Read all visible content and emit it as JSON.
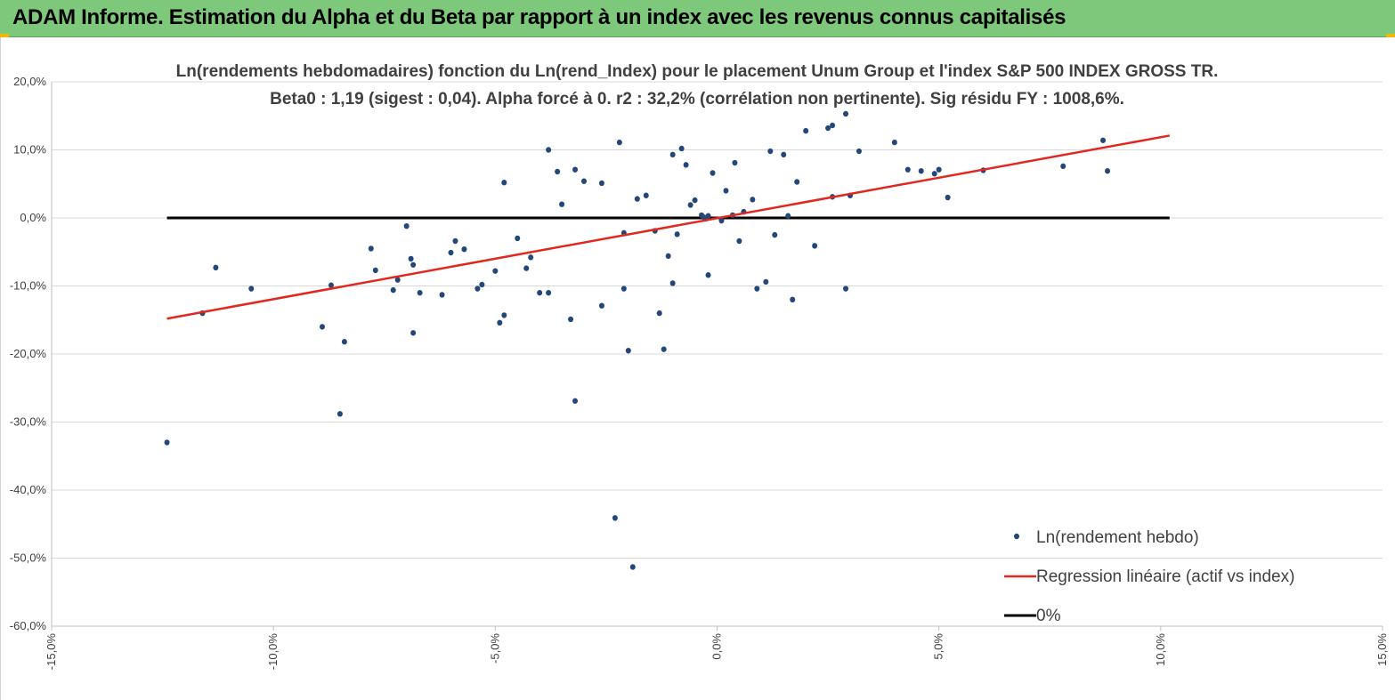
{
  "header": {
    "title": "ADAM Informe. Estimation du Alpha et du Beta par rapport à un index avec les revenus connus capitalisés",
    "color": "#7dc87a"
  },
  "chart_data": {
    "type": "scatter",
    "title": "Ln(rendements hebdomadaires) fonction du Ln(rend_Index) pour le placement Unum Group et l'index S&P 500 INDEX GROSS TR.",
    "subtitle": "Beta0 : 1,19 (sigest : 0,04). Alpha forcé à 0. r2 : 32,2% (corrélation non pertinente). Sig résidu FY : 1008,6%.",
    "xlabel": "",
    "ylabel": "",
    "xlim": [
      -15,
      15
    ],
    "ylim": [
      -60,
      20
    ],
    "x_ticks": [
      "-15,0%",
      "-10,0%",
      "-5,0%",
      "0,0%",
      "5,0%",
      "10,0%",
      "15,0%"
    ],
    "y_ticks": [
      "20,0%",
      "10,0%",
      "0,0%",
      "-10,0%",
      "-20,0%",
      "-30,0%",
      "-40,0%",
      "-50,0%",
      "-60,0%"
    ],
    "grid": "horizontal",
    "legend_position": "bottom-right",
    "series": [
      {
        "name": "Ln(rendement hebdo)",
        "kind": "scatter",
        "color": "#24477a",
        "points": [
          [
            -12.4,
            -33.0
          ],
          [
            -11.6,
            -14.0
          ],
          [
            -11.3,
            -7.3
          ],
          [
            -10.5,
            -10.4
          ],
          [
            -8.9,
            -16.0
          ],
          [
            -8.7,
            -9.9
          ],
          [
            -8.5,
            -28.8
          ],
          [
            -8.4,
            -18.2
          ],
          [
            -7.8,
            -4.5
          ],
          [
            -7.7,
            -7.7
          ],
          [
            -7.3,
            -10.6
          ],
          [
            -7.2,
            -9.1
          ],
          [
            -7.0,
            -1.2
          ],
          [
            -6.9,
            -6.0
          ],
          [
            -6.85,
            -6.9
          ],
          [
            -6.85,
            -16.9
          ],
          [
            -6.7,
            -11.0
          ],
          [
            -6.2,
            -11.3
          ],
          [
            -6.0,
            -5.1
          ],
          [
            -5.9,
            -3.4
          ],
          [
            -5.7,
            -4.6
          ],
          [
            -5.4,
            -10.4
          ],
          [
            -5.3,
            -9.8
          ],
          [
            -5.0,
            -7.8
          ],
          [
            -4.9,
            -15.4
          ],
          [
            -4.8,
            -14.3
          ],
          [
            -4.8,
            5.2
          ],
          [
            -4.5,
            -3.0
          ],
          [
            -4.3,
            -7.4
          ],
          [
            -4.2,
            -5.8
          ],
          [
            -4.0,
            -11.0
          ],
          [
            -3.8,
            10.0
          ],
          [
            -3.8,
            -11.0
          ],
          [
            -3.6,
            6.8
          ],
          [
            -3.5,
            2.0
          ],
          [
            -3.3,
            -14.9
          ],
          [
            -3.2,
            7.1
          ],
          [
            -3.2,
            -26.9
          ],
          [
            -3.0,
            5.4
          ],
          [
            -2.6,
            5.1
          ],
          [
            -2.6,
            -12.9
          ],
          [
            -2.3,
            -44.1
          ],
          [
            -2.2,
            11.1
          ],
          [
            -2.1,
            -10.4
          ],
          [
            -2.0,
            -19.5
          ],
          [
            -1.9,
            -51.3
          ],
          [
            -1.8,
            2.8
          ],
          [
            -1.4,
            -1.9
          ],
          [
            -1.3,
            -14.0
          ],
          [
            -1.2,
            -19.3
          ],
          [
            -1.1,
            -5.6
          ],
          [
            -1.0,
            -9.6
          ],
          [
            -1.0,
            9.3
          ],
          [
            -0.8,
            10.2
          ],
          [
            -0.7,
            7.8
          ],
          [
            -0.5,
            2.6
          ],
          [
            -0.2,
            -8.4
          ],
          [
            -0.1,
            6.6
          ],
          [
            0.2,
            4.0
          ],
          [
            0.4,
            8.1
          ],
          [
            0.9,
            -10.4
          ],
          [
            1.1,
            -9.4
          ],
          [
            1.2,
            9.8
          ],
          [
            1.5,
            9.3
          ],
          [
            1.7,
            -12.0
          ],
          [
            2.0,
            12.8
          ],
          [
            2.5,
            13.2
          ],
          [
            2.6,
            13.6
          ],
          [
            2.9,
            15.3
          ],
          [
            2.9,
            -10.4
          ],
          [
            3.2,
            9.8
          ],
          [
            4.0,
            11.1
          ],
          [
            4.3,
            7.1
          ],
          [
            4.6,
            6.9
          ],
          [
            4.9,
            6.5
          ],
          [
            5.0,
            7.1
          ],
          [
            5.2,
            3.0
          ],
          [
            6.0,
            7.0
          ],
          [
            7.8,
            7.6
          ],
          [
            8.7,
            11.4
          ],
          [
            8.8,
            6.9
          ],
          [
            -0.35,
            0.4
          ],
          [
            -0.3,
            0.1
          ],
          [
            -0.25,
            -0.1
          ],
          [
            -0.2,
            0.3
          ],
          [
            0.1,
            -0.4
          ],
          [
            0.35,
            0.4
          ],
          [
            0.6,
            0.9
          ],
          [
            1.3,
            -2.5
          ],
          [
            2.2,
            -4.1
          ],
          [
            -0.9,
            -2.4
          ],
          [
            -1.6,
            3.3
          ],
          [
            2.6,
            3.1
          ],
          [
            1.8,
            5.3
          ],
          [
            -2.1,
            -2.2
          ],
          [
            0.5,
            -3.4
          ],
          [
            3.0,
            3.3
          ],
          [
            -0.6,
            1.9
          ],
          [
            0.8,
            2.7
          ],
          [
            1.6,
            0.3
          ]
        ]
      },
      {
        "name": "Regression linéaire (actif vs index)",
        "kind": "line",
        "color": "#e3261f",
        "points": [
          [
            -12.4,
            -14.8
          ],
          [
            10.2,
            12.1
          ]
        ]
      },
      {
        "name": "0%",
        "kind": "line",
        "color": "#000000",
        "points": [
          [
            -12.4,
            0.0
          ],
          [
            10.2,
            0.0
          ]
        ]
      }
    ]
  }
}
